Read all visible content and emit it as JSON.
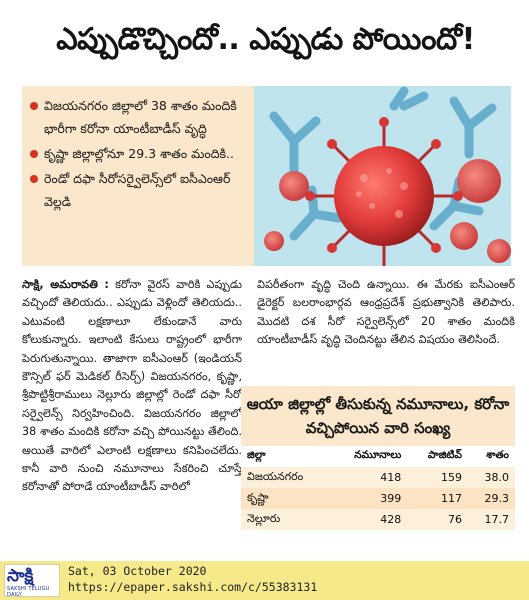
{
  "article": {
    "headline": "ఎప్పుడొచ్చిందో.. ఎప్పుడు పోయిందో!",
    "highlights": [
      "విజయనగరం జిల్లాలో 38 శాతం మందికి భారీగా కరోనా యాంటీబాడీస్‌ వృద్ధి",
      "కృష్ణా జిల్లాల్లోనూ 29.3 శాతం మందికి..",
      "రెండో దఫా సీరోసర్వైలెన్స్‌లో ఐసీఎంఆర్‌ వెల్లడి"
    ],
    "dateline": "సాక్షి, అమరావతి :",
    "body_col1": "కరోనా వైరస్‌ వారికి ఎప్పుడు వచ్చిందో తెలియదు.. ఎప్పుడు వెళ్లిందో తెలియదు.. ఎటువంటి లక్షణాలూ లేకుండానే వారు కోలుకున్నారు. ఇలాంటి కేసులు రాష్ట్రంలో భారీగా పెరుగుతున్నాయి. తాజాగా ఐసీఎంఆర్‌ (ఇండియన్‌ కౌన్సిల్‌ ఫర్‌ మెడికల్‌ రీసెర్చ్‌) విజయనగరం, కృష్ణా, శ్రీపొట్టిశ్రీరాములు నెల్లూరు జిల్లాల్లో రెండో దఫా సీరో సర్వైలెన్స్‌ నిర్వహించింది. విజయనగరం జిల్లాలో 38 శాతం మందికి కరోనా వచ్చి పోయినట్టు తేలింది. అయితే వారిలో ఎలాంటి లక్షణాలు కనిపించలేదు. కానీ వారి నుంచి నమూనాలు సేకరించి చూస్తే కరోనాతో పోరాడే యాంటీబాడీస్‌ వారిలో",
    "body_col2": "విపరీతంగా వృద్ధి చెంది ఉన్నాయి. ఈ మేరకు ఐసీఎంఆర్‌ డైరెక్టర్‌ బలరాంభార్గవ ఆంధ్రప్రదేశ్‌ ప్రభుత్వానికి తెలిపారు. మొదటి దశ సీరో సర్వైలెన్స్‌లో 20 శాతం మందికి యాంటీబాడీస్‌ వృద్ధి చెందినట్టు తేలిన విషయం తెలిసిందే."
  },
  "table": {
    "title": "ఆయా జిల్లాల్లో తీసుకున్న నమూనాలు, కరోనా వచ్చిపోయిన వారి సంఖ్య",
    "headers": [
      "జిల్లా",
      "నమూనాలు",
      "పాజిటివ్‌",
      "శాతం"
    ],
    "rows": [
      [
        "విజయనగరం",
        "418",
        "159",
        "38.0"
      ],
      [
        "కృష్ణా",
        "399",
        "117",
        "29.3"
      ],
      [
        "నెల్లూరు",
        "428",
        "76",
        "17.7"
      ]
    ]
  },
  "footer": {
    "logo_text": "సాక్షి",
    "logo_sub": "SAKSHI TELUGU DAILY",
    "date": "Sat, 03 October 2020",
    "url": "https://epaper.sakshi.com/c/55383131"
  },
  "colors": {
    "highlight_bg": "#fbe8cc",
    "bullet": "#d4341c",
    "virus_red": "#e03a3a",
    "hero_bg": "#bfe4ee",
    "footer_bg": "#f5e98a",
    "logo_blue": "#1b2f8e"
  },
  "icons": {
    "bullets": "red-dot-bullet-icon",
    "hero": "coronavirus-antibody-illustration"
  }
}
